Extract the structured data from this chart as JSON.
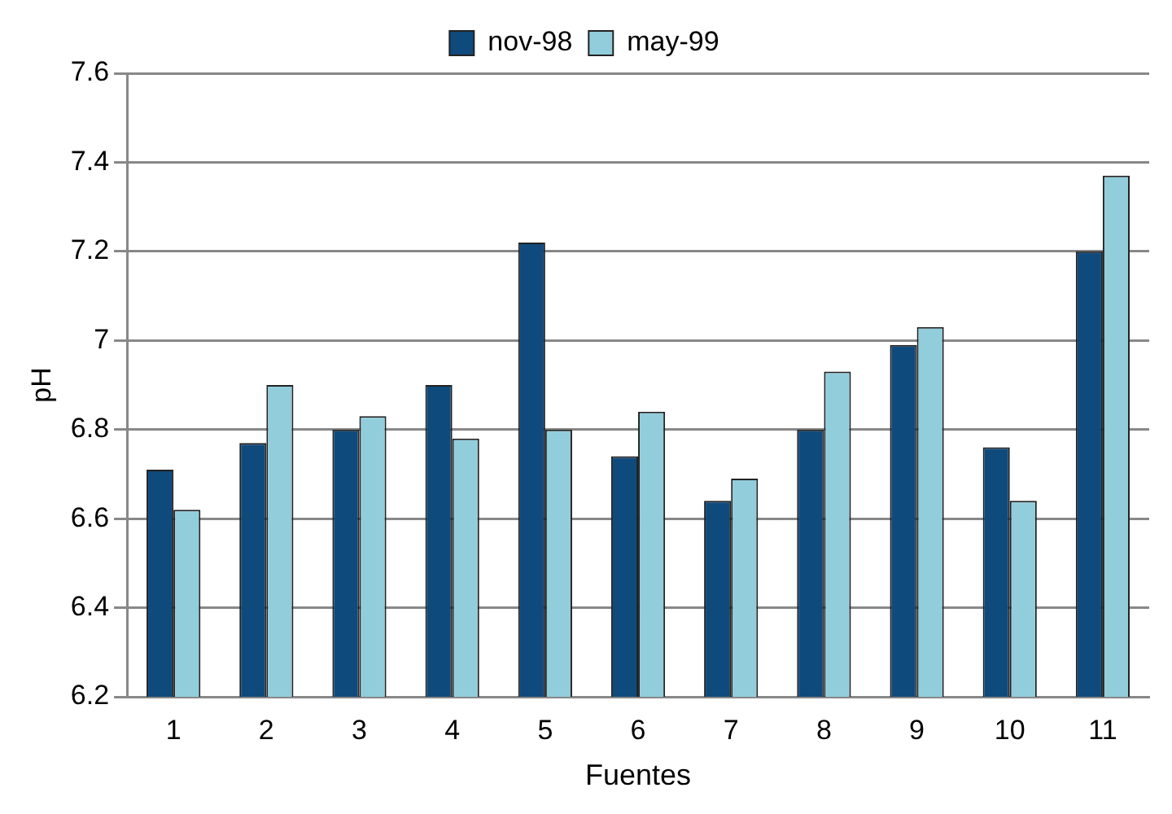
{
  "chart_data": {
    "type": "bar",
    "xlabel": "Fuentes",
    "ylabel": "pH",
    "categories": [
      "1",
      "2",
      "3",
      "4",
      "5",
      "6",
      "7",
      "8",
      "9",
      "10",
      "11"
    ],
    "series": [
      {
        "name": "nov-98",
        "color": "#0f4a7c",
        "values": [
          6.71,
          6.77,
          6.8,
          6.9,
          7.22,
          6.74,
          6.64,
          6.8,
          6.99,
          6.76,
          7.2
        ]
      },
      {
        "name": "may-99",
        "color": "#92cddc",
        "values": [
          6.62,
          6.9,
          6.83,
          6.78,
          6.8,
          6.84,
          6.69,
          6.93,
          7.03,
          6.64,
          7.37
        ]
      }
    ],
    "ylim": [
      6.2,
      7.6
    ],
    "yticks": [
      6.2,
      6.4,
      6.6,
      6.8,
      7,
      7.2,
      7.4,
      7.6
    ],
    "grid": "y",
    "legend": "top"
  }
}
